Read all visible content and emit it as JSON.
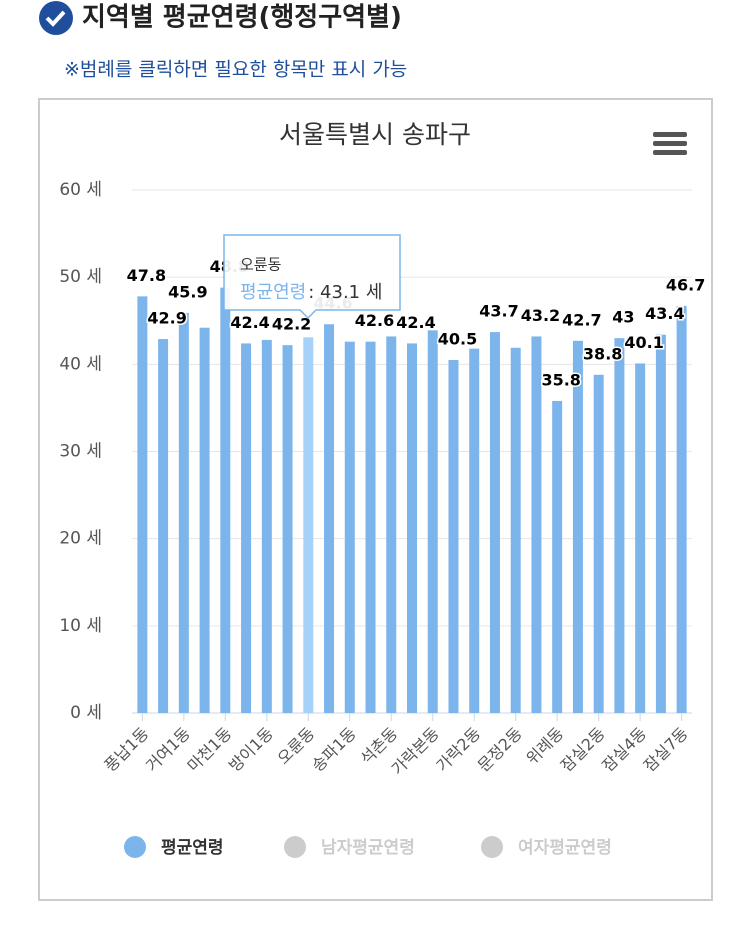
{
  "header": {
    "title": "지역별 평균연령(행정구역별)",
    "note": "※범례를 클릭하면 필요한 항목만 표시 가능"
  },
  "chart_data": {
    "type": "bar",
    "title": "서울특별시 송파구",
    "categories": [
      "풍납1동",
      null,
      "거여1동",
      null,
      "마천1동",
      null,
      "방이1동",
      null,
      "오륜동",
      null,
      "송파1동",
      null,
      "석촌동",
      null,
      "가락본동",
      null,
      "가락2동",
      null,
      "문정2동",
      null,
      "위례동",
      null,
      "잠실2동",
      null,
      "잠실4동",
      null,
      "잠실7동"
    ],
    "series": [
      {
        "name": "평균연령",
        "color": "#7cb5ec",
        "values": [
          47.8,
          42.9,
          45.9,
          44.2,
          48.8,
          42.4,
          42.8,
          42.2,
          43.1,
          44.6,
          42.6,
          42.6,
          43.2,
          42.4,
          43.9,
          40.5,
          41.8,
          43.7,
          41.9,
          43.2,
          35.8,
          42.7,
          38.8,
          43,
          40.1,
          43.4,
          46.7
        ]
      },
      {
        "name": "남자평균연령",
        "color": "#cccccc",
        "visible": false
      },
      {
        "name": "여자평균연령",
        "color": "#cccccc",
        "visible": false
      }
    ],
    "ylim": [
      0,
      60
    ],
    "yticks": [
      {
        "value": 0,
        "label": "0 세"
      },
      {
        "value": 10,
        "label": "10 세"
      },
      {
        "value": 20,
        "label": "20 세"
      },
      {
        "value": 30,
        "label": "30 세"
      },
      {
        "value": 40,
        "label": "40 세"
      },
      {
        "value": 50,
        "label": "50 세"
      },
      {
        "value": 60,
        "label": "60 세"
      }
    ],
    "grid": true,
    "tooltip": {
      "title": "오륜동",
      "series": "평균연령",
      "value_label": ": 43.1 세"
    }
  }
}
